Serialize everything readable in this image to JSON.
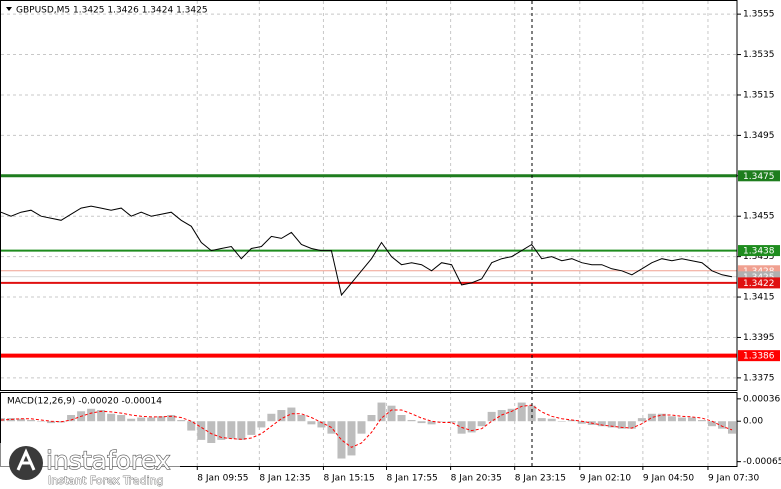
{
  "chart_data": [
    {
      "type": "line",
      "title": "GBPUSD,M5  1.3425 1.3426 1.3424 1.3425",
      "color": "#000000",
      "values": [
        1.3457,
        1.3455,
        1.3457,
        1.3458,
        1.3455,
        1.3454,
        1.3453,
        1.3456,
        1.3459,
        1.346,
        1.3459,
        1.3458,
        1.3459,
        1.3455,
        1.3457,
        1.3455,
        1.3456,
        1.3457,
        1.3453,
        1.345,
        1.3442,
        1.3438,
        1.3439,
        1.344,
        1.3434,
        1.3439,
        1.344,
        1.3445,
        1.3444,
        1.3447,
        1.3441,
        1.3439,
        1.3438,
        1.3438,
        1.3416,
        1.3422,
        1.3428,
        1.3434,
        1.3442,
        1.3435,
        1.3431,
        1.3432,
        1.3431,
        1.3428,
        1.3432,
        1.3431,
        1.3421,
        1.3422,
        1.3424,
        1.3432,
        1.3434,
        1.3435,
        1.3438,
        1.3441,
        1.3434,
        1.3435,
        1.3433,
        1.3434,
        1.3432,
        1.3431,
        1.3431,
        1.3429,
        1.3428,
        1.3426,
        1.3429,
        1.3432,
        1.3434,
        1.3433,
        1.3434,
        1.3433,
        1.3432,
        1.3428,
        1.3426,
        1.3425
      ],
      "xlim": [
        0,
        73.5
      ],
      "xticks": [
        {
          "value": 19.6,
          "label": "8 Jan 09:55"
        },
        {
          "value": 25.8,
          "label": "8 Jan 12:35"
        },
        {
          "value": 32.2,
          "label": "8 Jan 15:15"
        },
        {
          "value": 38.5,
          "label": "8 Jan 17:55"
        },
        {
          "value": 44.9,
          "label": "8 Jan 20:35"
        },
        {
          "value": 51.3,
          "label": "8 Jan 23:15"
        },
        {
          "value": 57.8,
          "label": "9 Jan 02:10"
        },
        {
          "value": 64.1,
          "label": "9 Jan 04:50"
        },
        {
          "value": 70.6,
          "label": "9 Jan 07:30"
        }
      ],
      "ylim": [
        1.3369,
        1.3562
      ],
      "yticks": [
        1.3555,
        1.3535,
        1.3515,
        1.3495,
        1.3475,
        1.3455,
        1.3435,
        1.3415,
        1.3395,
        1.3375
      ],
      "grid": true,
      "levels": [
        {
          "value": 1.3475,
          "color": "#1e7d1e",
          "width": 3
        },
        {
          "value": 1.3438,
          "color": "#1e8c1e",
          "width": 2
        },
        {
          "value": 1.3428,
          "color": "#f0a090",
          "width": 1
        },
        {
          "value": 1.3425,
          "color": "#b0b0b0",
          "width": 0.5
        },
        {
          "value": 1.3422,
          "color": "#e01010",
          "width": 2
        },
        {
          "value": 1.3386,
          "color": "#ff0000",
          "width": 4
        }
      ]
    },
    {
      "type": "macd",
      "title": "MACD(12,26,9) -0.00020 -0.00014",
      "ylim": [
        -0.00072,
        0.00047
      ],
      "yticks": [
        0.00036,
        {
          "value": 0,
          "label": "0.00"
        },
        -0.00065
      ],
      "histogram": {
        "color": "#bdbdbd",
        "values": [
          5e-05,
          5e-05,
          4e-05,
          2e-05,
          0,
          -3e-05,
          -2e-05,
          0.0001,
          0.00016,
          0.0002,
          0.00018,
          0.00012,
          0.0001,
          4e-05,
          6e-05,
          6e-05,
          8e-05,
          0.0001,
          2e-05,
          -0.00015,
          -0.0003,
          -0.00035,
          -0.0003,
          -0.00028,
          -0.0003,
          -0.00022,
          -0.0001,
          0.00012,
          0.00018,
          0.00022,
          0.0001,
          -5e-05,
          -0.0001,
          -0.0002,
          -0.0006,
          -0.00055,
          -0.0002,
          0.0001,
          0.0003,
          0.00025,
          0.0001,
          2e-05,
          -3e-05,
          -5e-05,
          0,
          -2e-05,
          -0.0002,
          -0.00018,
          -8e-05,
          0.00015,
          0.00018,
          0.0002,
          0.0003,
          0.00025,
          5e-05,
          4e-05,
          0,
          2e-05,
          -4e-05,
          -6e-05,
          -8e-05,
          -0.0001,
          -0.00012,
          -0.00012,
          5e-05,
          0.00012,
          0.00012,
          8e-05,
          6e-05,
          6e-05,
          2e-05,
          -8e-05,
          -0.00012,
          -0.0002
        ]
      },
      "signal": {
        "color": "#ff0000",
        "values": [
          2e-05,
          3e-05,
          4e-05,
          4e-05,
          2e-05,
          0,
          -1e-05,
          2e-05,
          8e-05,
          0.00013,
          0.00016,
          0.00015,
          0.00013,
          0.0001,
          8e-05,
          7e-05,
          7e-05,
          8e-05,
          6e-05,
          0,
          -0.0001,
          -0.0002,
          -0.00026,
          -0.00028,
          -0.00029,
          -0.00027,
          -0.0002,
          -8e-05,
          4e-05,
          0.00012,
          0.00012,
          6e-05,
          -2e-05,
          -0.0001,
          -0.0003,
          -0.00042,
          -0.00035,
          -0.00018,
          5e-05,
          0.00018,
          0.00018,
          0.00012,
          5e-05,
          0,
          -2e-05,
          -2e-05,
          -0.0001,
          -0.00015,
          -0.00012,
          0,
          0.0001,
          0.00016,
          0.00024,
          0.00026,
          0.00015,
          8e-05,
          4e-05,
          2e-05,
          0,
          -3e-05,
          -6e-05,
          -8e-05,
          -0.0001,
          -0.00011,
          -4e-05,
          6e-05,
          0.0001,
          0.0001,
          8e-05,
          7e-05,
          5e-05,
          0,
          -8e-05,
          -0.00014
        ]
      }
    }
  ],
  "watermark": {
    "brand": "instaforex",
    "tagline": "Instant Forex Trading"
  }
}
